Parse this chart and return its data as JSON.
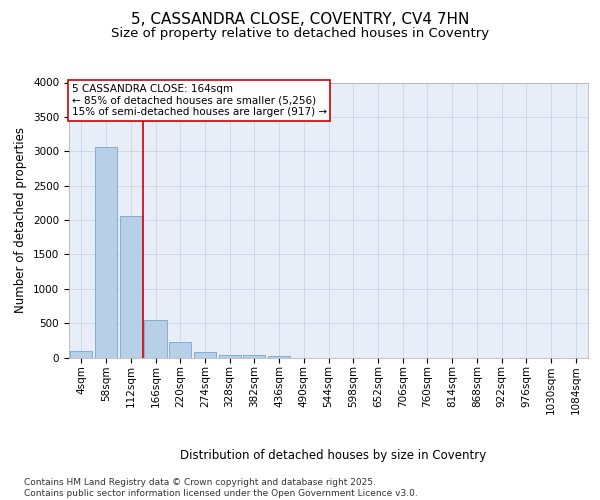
{
  "title": "5, CASSANDRA CLOSE, COVENTRY, CV4 7HN",
  "subtitle": "Size of property relative to detached houses in Coventry",
  "xlabel": "Distribution of detached houses by size in Coventry",
  "ylabel": "Number of detached properties",
  "bin_labels": [
    "4sqm",
    "58sqm",
    "112sqm",
    "166sqm",
    "220sqm",
    "274sqm",
    "328sqm",
    "382sqm",
    "436sqm",
    "490sqm",
    "544sqm",
    "598sqm",
    "652sqm",
    "706sqm",
    "760sqm",
    "814sqm",
    "868sqm",
    "922sqm",
    "976sqm",
    "1030sqm",
    "1084sqm"
  ],
  "bar_values": [
    100,
    3060,
    2060,
    550,
    220,
    80,
    40,
    30,
    20,
    0,
    0,
    0,
    0,
    0,
    0,
    0,
    0,
    0,
    0,
    0,
    0
  ],
  "bar_color": "#b8cfe8",
  "bar_edge_color": "#6699cc",
  "grid_color": "#c8d4e8",
  "background_color": "#e8eef8",
  "vline_color": "#cc0000",
  "vline_x_pos": 2.5,
  "annotation_box_text": "5 CASSANDRA CLOSE: 164sqm\n← 85% of detached houses are smaller (5,256)\n15% of semi-detached houses are larger (917) →",
  "annotation_box_color": "#cc0000",
  "ylim": [
    0,
    4000
  ],
  "yticks": [
    0,
    500,
    1000,
    1500,
    2000,
    2500,
    3000,
    3500,
    4000
  ],
  "footnote": "Contains HM Land Registry data © Crown copyright and database right 2025.\nContains public sector information licensed under the Open Government Licence v3.0.",
  "title_fontsize": 11,
  "subtitle_fontsize": 9.5,
  "label_fontsize": 8.5,
  "tick_fontsize": 7.5,
  "annotation_fontsize": 7.5,
  "footnote_fontsize": 6.5
}
